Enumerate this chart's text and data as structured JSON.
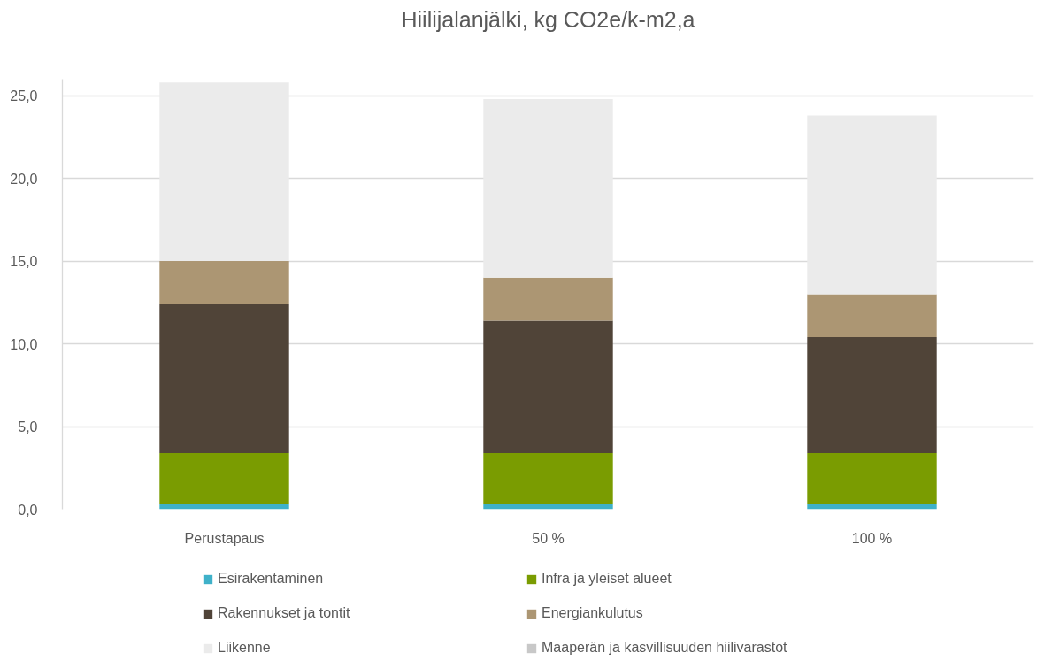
{
  "chart_data": {
    "type": "bar",
    "title": "Hiilijalanjälki, kg CO2e/k-m2,a",
    "categories": [
      "Perustapaus",
      "50 %",
      "100 %"
    ],
    "stacked": true,
    "series": [
      {
        "name": "Esirakentaminen",
        "color": "#3fb1c9",
        "values": [
          0.3,
          0.3,
          0.3
        ]
      },
      {
        "name": "Infra ja yleiset alueet",
        "color": "#7a9c01",
        "values": [
          3.1,
          3.1,
          3.1
        ]
      },
      {
        "name": "Rakennukset ja tontit",
        "color": "#504438",
        "values": [
          9.0,
          8.0,
          7.0
        ]
      },
      {
        "name": "Energiankulutus",
        "color": "#ac9673",
        "values": [
          2.6,
          2.6,
          2.6
        ]
      },
      {
        "name": "Liikenne",
        "color": "#ebebeb",
        "values": [
          10.8,
          10.8,
          10.8
        ]
      },
      {
        "name": "Maaperän ja kasvillisuuden hiilivarastot",
        "color": "#c8c8c8",
        "values": [
          null,
          null,
          null
        ]
      }
    ],
    "ylim": [
      0,
      26
    ],
    "yticks": [
      {
        "value": 0,
        "label": "0,0"
      },
      {
        "value": 5,
        "label": "5,0"
      },
      {
        "value": 10,
        "label": "10,0"
      },
      {
        "value": 15,
        "label": "15,0"
      },
      {
        "value": 20,
        "label": "20,0"
      },
      {
        "value": 25,
        "label": "25,0"
      }
    ],
    "grid": "y",
    "legend": "bottom"
  }
}
